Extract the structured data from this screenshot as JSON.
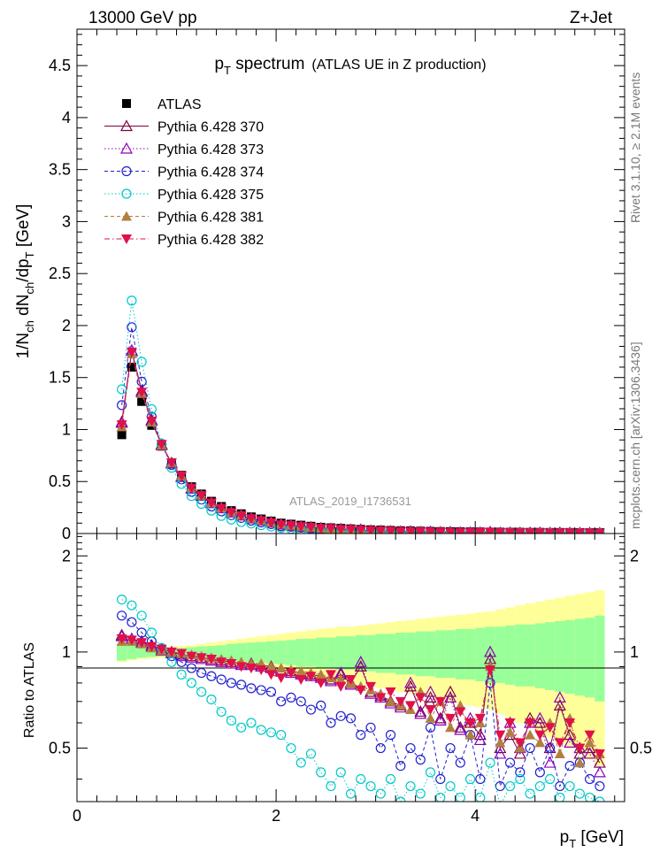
{
  "header": {
    "left": "13000 GeV pp",
    "right": "Z+Jet"
  },
  "side_labels": {
    "top": "Rivet 3.1.10, ≥ 2.1M events",
    "bottom": "mcplots.cern.ch [arXiv:1306.3436]"
  },
  "watermark": "ATLAS_2019_I1736531",
  "colors": {
    "data": "#000000",
    "s370": "#800040",
    "s373": "#8b00b8",
    "s374": "#2020d0",
    "s375": "#00c8c8",
    "s381": "#b08040",
    "s382": "#e0104a",
    "band_stat": "#99ff99",
    "band_total": "#ffff99"
  },
  "chart_data": {
    "type": "line",
    "title": "p_T spectrum (ATLAS UE in Z production)",
    "title_main": "p",
    "title_sub": "T",
    "title_rest": " spectrum",
    "title_paren": "(ATLAS UE in Z production)",
    "xlabel": "p_T [GeV]",
    "xlabel_main": "p",
    "xlabel_sub": "T",
    "xlabel_rest": " [GeV]",
    "ylabel": "1/N_ch dN_ch/dp_T [GeV]",
    "ylabel_ratio": "Ratio to ATLAS",
    "xlim": [
      0,
      5.5
    ],
    "ylim": [
      0,
      4.85
    ],
    "ylim_ratio": [
      0.34,
      2.35
    ],
    "xticks": [
      "0",
      "2",
      "4"
    ],
    "yticks": [
      "0",
      "0.5",
      "1",
      "1.5",
      "2",
      "2.5",
      "3",
      "3.5",
      "4",
      "4.5"
    ],
    "yticks_ratio": [
      "0.5",
      "1",
      "2"
    ],
    "legend_placement": "top-left",
    "x": [
      0.45,
      0.55,
      0.65,
      0.75,
      0.85,
      0.95,
      1.05,
      1.15,
      1.25,
      1.35,
      1.45,
      1.55,
      1.65,
      1.75,
      1.85,
      1.95,
      2.05,
      2.15,
      2.25,
      2.35,
      2.45,
      2.55,
      2.65,
      2.75,
      2.85,
      2.95,
      3.05,
      3.15,
      3.25,
      3.35,
      3.45,
      3.55,
      3.65,
      3.75,
      3.85,
      3.95,
      4.05,
      4.15,
      4.25,
      4.35,
      4.45,
      4.55,
      4.65,
      4.75,
      4.85,
      4.95,
      5.05,
      5.15,
      5.25
    ],
    "atlas": [
      0.95,
      1.6,
      1.27,
      1.04,
      0.84,
      0.68,
      0.56,
      0.45,
      0.38,
      0.31,
      0.26,
      0.22,
      0.19,
      0.16,
      0.14,
      0.12,
      0.1,
      0.09,
      0.08,
      0.07,
      0.06,
      0.055,
      0.05,
      0.045,
      0.04,
      0.036,
      0.033,
      0.03,
      0.027,
      0.025,
      0.023,
      0.021,
      0.019,
      0.018,
      0.017,
      0.016,
      0.015,
      0.014,
      0.013,
      0.012,
      0.012,
      0.011,
      0.011,
      0.01,
      0.01,
      0.01,
      0.009,
      0.009,
      0.009
    ],
    "band_stat": [
      0.06,
      0.05,
      0.04,
      0.035,
      0.03,
      0.03,
      0.03,
      0.035,
      0.04,
      0.045,
      0.05,
      0.06,
      0.065,
      0.07,
      0.075,
      0.08,
      0.085,
      0.09,
      0.1,
      0.1,
      0.11,
      0.11,
      0.12,
      0.12,
      0.13,
      0.13,
      0.14,
      0.14,
      0.15,
      0.15,
      0.16,
      0.16,
      0.17,
      0.17,
      0.18,
      0.18,
      0.19,
      0.2,
      0.2,
      0.21,
      0.22,
      0.22,
      0.23,
      0.24,
      0.25,
      0.26,
      0.27,
      0.28,
      0.3
    ],
    "band_total": [
      0.07,
      0.06,
      0.05,
      0.045,
      0.04,
      0.04,
      0.045,
      0.05,
      0.06,
      0.07,
      0.08,
      0.09,
      0.1,
      0.11,
      0.12,
      0.13,
      0.14,
      0.15,
      0.16,
      0.17,
      0.18,
      0.19,
      0.2,
      0.2,
      0.21,
      0.22,
      0.23,
      0.24,
      0.25,
      0.26,
      0.27,
      0.28,
      0.29,
      0.3,
      0.31,
      0.32,
      0.33,
      0.34,
      0.36,
      0.38,
      0.4,
      0.42,
      0.44,
      0.46,
      0.48,
      0.5,
      0.52,
      0.54,
      0.56
    ],
    "series": [
      {
        "name": "ATLAS",
        "key": "atlas",
        "marker": "square",
        "line": "none"
      },
      {
        "name": "Pythia 6.428 370",
        "key": "s370",
        "marker": "triangle-open",
        "line": "solid",
        "ratio": [
          1.13,
          1.1,
          1.08,
          1.05,
          1.02,
          1.0,
          0.98,
          0.97,
          0.96,
          0.95,
          0.94,
          0.93,
          0.92,
          0.92,
          0.91,
          0.9,
          0.88,
          0.87,
          0.86,
          0.85,
          0.84,
          0.82,
          0.85,
          0.8,
          0.9,
          0.75,
          0.73,
          0.7,
          0.68,
          0.78,
          0.65,
          0.72,
          0.62,
          0.75,
          0.58,
          0.6,
          0.55,
          0.95,
          0.5,
          0.55,
          0.48,
          0.62,
          0.6,
          0.5,
          0.68,
          0.55,
          0.48,
          0.5,
          0.45
        ]
      },
      {
        "name": "Pythia 6.428 373",
        "key": "s373",
        "marker": "triangle-open",
        "line": "dotted",
        "ratio": [
          1.12,
          1.1,
          1.07,
          1.04,
          1.01,
          0.99,
          0.97,
          0.96,
          0.95,
          0.94,
          0.93,
          0.92,
          0.91,
          0.91,
          0.9,
          0.89,
          0.87,
          0.86,
          0.85,
          0.84,
          0.83,
          0.81,
          0.86,
          0.79,
          0.93,
          0.74,
          0.72,
          0.69,
          0.67,
          0.8,
          0.64,
          0.75,
          0.61,
          0.72,
          0.57,
          0.62,
          0.53,
          1.0,
          0.48,
          0.6,
          0.5,
          0.6,
          0.62,
          0.45,
          0.72,
          0.52,
          0.5,
          0.48,
          0.42
        ]
      },
      {
        "name": "Pythia 6.428 374",
        "key": "s374",
        "marker": "circle-open",
        "line": "dashed",
        "ratio": [
          1.3,
          1.24,
          1.15,
          1.08,
          1.02,
          0.97,
          0.93,
          0.89,
          0.86,
          0.84,
          0.82,
          0.8,
          0.79,
          0.77,
          0.76,
          0.75,
          0.7,
          0.72,
          0.7,
          0.66,
          0.68,
          0.6,
          0.63,
          0.62,
          0.55,
          0.58,
          0.5,
          0.55,
          0.44,
          0.5,
          0.46,
          0.58,
          0.4,
          0.5,
          0.45,
          0.55,
          0.4,
          0.8,
          0.38,
          0.45,
          0.42,
          0.5,
          0.42,
          0.5,
          0.38,
          0.44,
          0.45,
          0.4,
          0.38
        ]
      },
      {
        "name": "Pythia 6.428 375",
        "key": "s375",
        "marker": "circle-open",
        "line": "dotted",
        "ratio": [
          1.46,
          1.4,
          1.3,
          1.15,
          1.03,
          0.93,
          0.85,
          0.8,
          0.75,
          0.71,
          0.65,
          0.61,
          0.58,
          0.6,
          0.57,
          0.56,
          0.55,
          0.5,
          0.45,
          0.48,
          0.42,
          0.38,
          0.42,
          0.36,
          0.4,
          0.38,
          0.36,
          0.4,
          0.34,
          0.38,
          0.36,
          0.42,
          0.35,
          0.38,
          0.35,
          0.4,
          0.35,
          0.45,
          0.33,
          0.38,
          0.4,
          0.36,
          0.38,
          0.4,
          0.35,
          0.38,
          0.36,
          0.35,
          0.34
        ]
      },
      {
        "name": "Pythia 6.428 381",
        "key": "s381",
        "marker": "triangle-filled",
        "line": "dashed",
        "ratio": [
          1.08,
          1.08,
          1.06,
          1.03,
          1.01,
          1.0,
          0.99,
          0.98,
          0.97,
          0.96,
          0.95,
          0.94,
          0.93,
          0.92,
          0.92,
          0.9,
          0.89,
          0.88,
          0.87,
          0.86,
          0.85,
          0.83,
          0.82,
          0.8,
          0.78,
          0.76,
          0.74,
          0.7,
          0.68,
          0.66,
          0.75,
          0.62,
          0.7,
          0.58,
          0.68,
          0.55,
          0.6,
          0.9,
          0.52,
          0.56,
          0.5,
          0.55,
          0.52,
          0.6,
          0.48,
          0.62,
          0.45,
          0.52,
          0.48
        ]
      },
      {
        "name": "Pythia 6.428 382",
        "key": "s382",
        "marker": "triangle-down-filled",
        "line": "dashdot",
        "ratio": [
          1.1,
          1.09,
          1.07,
          1.04,
          1.02,
          1.0,
          0.99,
          0.97,
          0.96,
          0.95,
          0.93,
          0.92,
          0.9,
          0.89,
          0.88,
          0.85,
          0.83,
          0.86,
          0.82,
          0.84,
          0.8,
          0.85,
          0.78,
          0.82,
          0.76,
          0.78,
          0.72,
          0.75,
          0.7,
          0.68,
          0.72,
          0.66,
          0.7,
          0.62,
          0.65,
          0.6,
          0.62,
          0.88,
          0.55,
          0.6,
          0.52,
          0.6,
          0.55,
          0.58,
          0.52,
          0.6,
          0.5,
          0.55,
          0.48
        ]
      }
    ]
  }
}
